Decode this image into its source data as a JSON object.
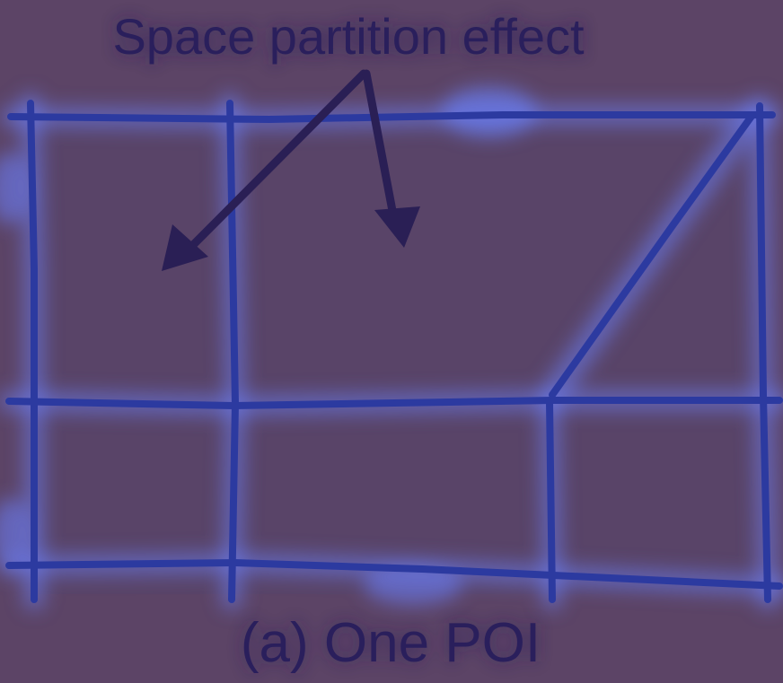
{
  "annotation": {
    "label": "Space partition effect"
  },
  "caption": {
    "text": "(a) One POI"
  },
  "colors": {
    "background": "#5c4466",
    "cell_fill": "#594468",
    "line": "#2c3aa0",
    "glow": "#6a7cf0",
    "text": "#2a1f5c"
  }
}
